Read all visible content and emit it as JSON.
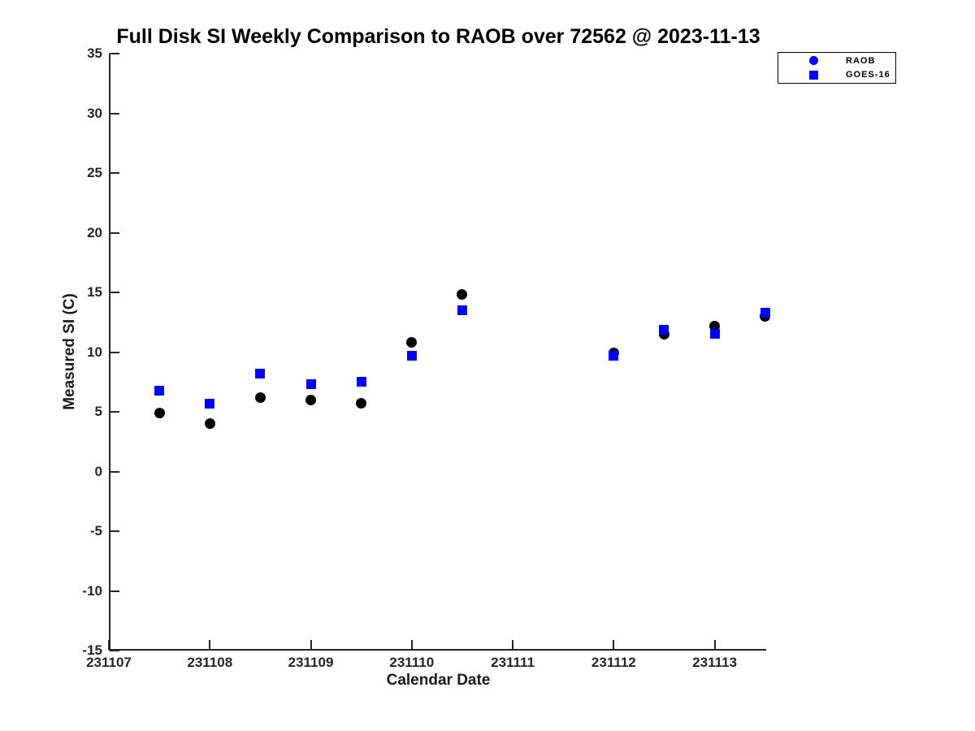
{
  "chart_data": {
    "type": "scatter",
    "title": "Full Disk SI Weekly Comparison to RAOB over 72562 @ 2023-11-13",
    "xlabel": "Calendar Date",
    "ylabel": "Measured SI (C)",
    "xlim": [
      231107,
      231113.51
    ],
    "ylim": [
      -15,
      35
    ],
    "x_ticks": [
      231107,
      231108,
      231109,
      231110,
      231111,
      231112,
      231113
    ],
    "y_ticks": [
      -15,
      -10,
      -5,
      0,
      5,
      10,
      15,
      20,
      25,
      30,
      35
    ],
    "grid": false,
    "legend_position": "top-right",
    "colors": {
      "raob_data": "#000000",
      "goes16_data": "#0000ff",
      "legend_marker": "#0000ff",
      "axis": "#262626"
    },
    "x": [
      231107.5,
      231108,
      231108.5,
      231109,
      231109.5,
      231110,
      231110.5,
      231112,
      231112.5,
      231113,
      231113.5
    ],
    "series": [
      {
        "name": "RAOB",
        "marker": "circle",
        "color": "#000000",
        "values": [
          4.9,
          4.0,
          6.2,
          6.0,
          5.7,
          10.8,
          14.8,
          9.9,
          11.5,
          12.2,
          13.0
        ]
      },
      {
        "name": "GOES-16",
        "marker": "square",
        "color": "#0000ff",
        "values": [
          6.8,
          5.7,
          8.2,
          7.3,
          7.5,
          9.7,
          13.5,
          9.7,
          11.9,
          11.5,
          13.3
        ]
      }
    ]
  }
}
